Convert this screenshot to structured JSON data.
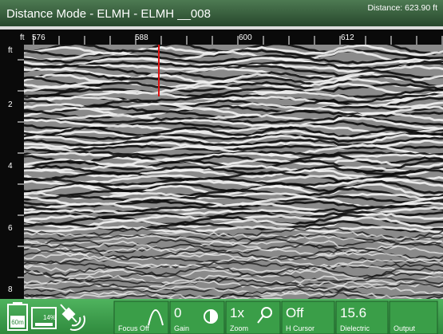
{
  "header": {
    "title": "Distance Mode - ELMH - ELMH __008",
    "distance": "Distance: 623.90 ft"
  },
  "top_ruler": {
    "unit": "ft",
    "labels": [
      "576",
      "588",
      "600",
      "612"
    ]
  },
  "left_ruler": {
    "unit": "ft",
    "labels": [
      "2",
      "4",
      "6",
      "8"
    ]
  },
  "toolbar": {
    "battery": "60m",
    "storage": "14%",
    "buttons": [
      {
        "value": "",
        "label": "Focus Off"
      },
      {
        "value": "0",
        "label": "Gain"
      },
      {
        "value": "1x",
        "label": "Zoom"
      },
      {
        "value": "Off",
        "label": "H Cursor"
      },
      {
        "value": "15.6",
        "label": "Dielectric"
      },
      {
        "value": "",
        "label": "Output"
      }
    ]
  }
}
